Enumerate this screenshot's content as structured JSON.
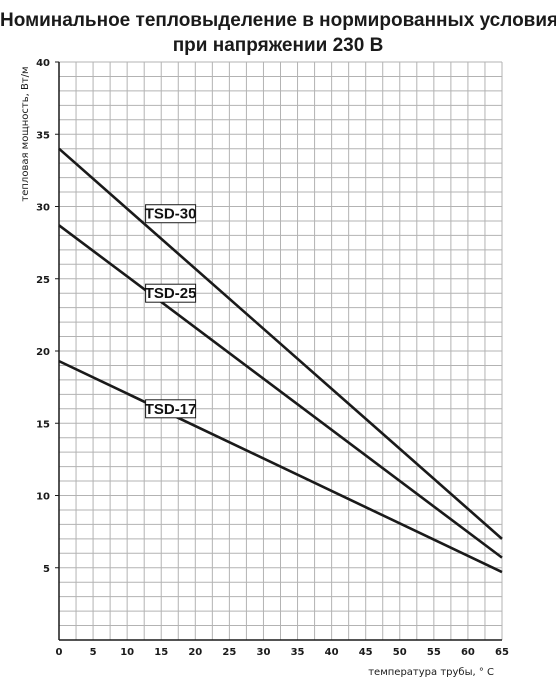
{
  "chart_data": {
    "type": "line",
    "title": "Номинальное тепловыделение в нормированных условиях",
    "subtitle": "при напряжении 230 В",
    "xlabel": "температура трубы, ° C",
    "ylabel": "тепловая мощность, Вт/м",
    "xlim": [
      0,
      65
    ],
    "ylim": [
      0,
      40
    ],
    "x_ticks": [
      "0",
      "5",
      "10",
      "15",
      "20",
      "25",
      "30",
      "35",
      "40",
      "45",
      "50",
      "55",
      "60",
      "65"
    ],
    "y_ticks": [
      "5",
      "10",
      "15",
      "20",
      "25",
      "30",
      "35",
      "40"
    ],
    "grid": true,
    "series": [
      {
        "name": "TSD-30",
        "x": [
          0,
          65
        ],
        "y": [
          34.0,
          7.0
        ],
        "label_at": [
          13,
          29.5
        ]
      },
      {
        "name": "TSD-25",
        "x": [
          0,
          65
        ],
        "y": [
          28.7,
          5.7
        ],
        "label_at": [
          13,
          24.0
        ]
      },
      {
        "name": "TSD-17",
        "x": [
          0,
          65
        ],
        "y": [
          19.3,
          4.7
        ],
        "label_at": [
          13,
          16.0
        ]
      }
    ],
    "colors": {
      "line": "#1a1a1a",
      "grid": "#b3b3b3",
      "axis": "#1a1a1a"
    }
  }
}
